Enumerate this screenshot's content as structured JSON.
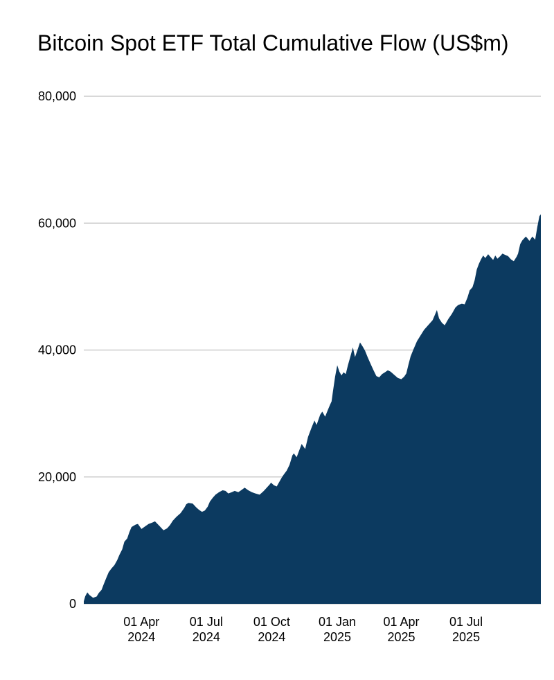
{
  "chart_data": {
    "type": "area",
    "title": "Bitcoin Spot ETF Total Cumulative Flow (US$m)",
    "xlabel": "",
    "ylabel": "",
    "unit": "US$m",
    "ylim": [
      0,
      80000
    ],
    "grid": "horizontal-only",
    "legend": "none",
    "colors": {
      "area_fill": "#0C3A60",
      "gridline": "#CCCCCC",
      "background": "#FFFFFF",
      "text": "#000000"
    },
    "y_ticks": [
      {
        "value": 0,
        "label": "0"
      },
      {
        "value": 20000,
        "label": "20,000"
      },
      {
        "value": 40000,
        "label": "40,000"
      },
      {
        "value": 60000,
        "label": "60,000"
      },
      {
        "value": 80000,
        "label": "80,000"
      }
    ],
    "x_ticks": [
      {
        "date": "2024-04-01",
        "label_line1": "01 Apr",
        "label_line2": "2024"
      },
      {
        "date": "2024-07-01",
        "label_line1": "01 Jul",
        "label_line2": "2024"
      },
      {
        "date": "2024-10-01",
        "label_line1": "01 Oct",
        "label_line2": "2024"
      },
      {
        "date": "2025-01-01",
        "label_line1": "01 Jan",
        "label_line2": "2025"
      },
      {
        "date": "2025-04-01",
        "label_line1": "01 Apr",
        "label_line2": "2025"
      },
      {
        "date": "2025-07-01",
        "label_line1": "01 Jul",
        "label_line2": "2025"
      }
    ],
    "x_domain": [
      "2024-01-11",
      "2025-10-14"
    ],
    "points": [
      [
        "2024-01-11",
        400
      ],
      [
        "2024-01-13",
        1200
      ],
      [
        "2024-01-16",
        1800
      ],
      [
        "2024-01-19",
        1400
      ],
      [
        "2024-01-24",
        950
      ],
      [
        "2024-01-29",
        1150
      ],
      [
        "2024-02-01",
        1700
      ],
      [
        "2024-02-05",
        2200
      ],
      [
        "2024-02-08",
        3100
      ],
      [
        "2024-02-12",
        4200
      ],
      [
        "2024-02-15",
        5000
      ],
      [
        "2024-02-19",
        5600
      ],
      [
        "2024-02-23",
        6100
      ],
      [
        "2024-02-27",
        6900
      ],
      [
        "2024-03-01",
        7700
      ],
      [
        "2024-03-05",
        8600
      ],
      [
        "2024-03-08",
        9800
      ],
      [
        "2024-03-12",
        10300
      ],
      [
        "2024-03-15",
        11300
      ],
      [
        "2024-03-18",
        12100
      ],
      [
        "2024-03-21",
        12300
      ],
      [
        "2024-03-24",
        12500
      ],
      [
        "2024-03-27",
        12600
      ],
      [
        "2024-04-01",
        11800
      ],
      [
        "2024-04-06",
        12200
      ],
      [
        "2024-04-11",
        12600
      ],
      [
        "2024-04-16",
        12800
      ],
      [
        "2024-04-20",
        13000
      ],
      [
        "2024-04-26",
        12300
      ],
      [
        "2024-05-02",
        11600
      ],
      [
        "2024-05-07",
        11900
      ],
      [
        "2024-05-11",
        12400
      ],
      [
        "2024-05-15",
        13100
      ],
      [
        "2024-05-20",
        13700
      ],
      [
        "2024-05-26",
        14300
      ],
      [
        "2024-05-31",
        15100
      ],
      [
        "2024-06-03",
        15700
      ],
      [
        "2024-06-06",
        15900
      ],
      [
        "2024-06-12",
        15800
      ],
      [
        "2024-06-17",
        15200
      ],
      [
        "2024-06-21",
        14800
      ],
      [
        "2024-06-25",
        14500
      ],
      [
        "2024-06-29",
        14700
      ],
      [
        "2024-07-03",
        15300
      ],
      [
        "2024-07-06",
        16100
      ],
      [
        "2024-07-10",
        16700
      ],
      [
        "2024-07-14",
        17200
      ],
      [
        "2024-07-19",
        17600
      ],
      [
        "2024-07-24",
        17900
      ],
      [
        "2024-07-28",
        17800
      ],
      [
        "2024-08-01",
        17400
      ],
      [
        "2024-08-06",
        17600
      ],
      [
        "2024-08-10",
        17800
      ],
      [
        "2024-08-15",
        17600
      ],
      [
        "2024-08-19",
        17900
      ],
      [
        "2024-08-24",
        18300
      ],
      [
        "2024-08-29",
        17900
      ],
      [
        "2024-09-03",
        17600
      ],
      [
        "2024-09-08",
        17400
      ],
      [
        "2024-09-14",
        17200
      ],
      [
        "2024-09-19",
        17700
      ],
      [
        "2024-09-24",
        18300
      ],
      [
        "2024-09-28",
        18800
      ],
      [
        "2024-09-30",
        19100
      ],
      [
        "2024-10-04",
        18700
      ],
      [
        "2024-10-08",
        18500
      ],
      [
        "2024-10-11",
        19100
      ],
      [
        "2024-10-15",
        19900
      ],
      [
        "2024-10-18",
        20400
      ],
      [
        "2024-10-22",
        21000
      ],
      [
        "2024-10-26",
        21900
      ],
      [
        "2024-10-30",
        23400
      ],
      [
        "2024-11-01",
        23700
      ],
      [
        "2024-11-05",
        23100
      ],
      [
        "2024-11-09",
        24300
      ],
      [
        "2024-11-12",
        25200
      ],
      [
        "2024-11-17",
        24400
      ],
      [
        "2024-11-21",
        26300
      ],
      [
        "2024-11-26",
        27800
      ],
      [
        "2024-11-30",
        28900
      ],
      [
        "2024-12-03",
        28200
      ],
      [
        "2024-12-08",
        29800
      ],
      [
        "2024-12-11",
        30300
      ],
      [
        "2024-12-15",
        29500
      ],
      [
        "2024-12-19",
        30600
      ],
      [
        "2024-12-22",
        31400
      ],
      [
        "2024-12-24",
        31900
      ],
      [
        "2024-12-26",
        33500
      ],
      [
        "2024-12-29",
        35800
      ],
      [
        "2025-01-01",
        37600
      ],
      [
        "2025-01-04",
        36600
      ],
      [
        "2025-01-07",
        36000
      ],
      [
        "2025-01-10",
        36500
      ],
      [
        "2025-01-13",
        36200
      ],
      [
        "2025-01-16",
        37600
      ],
      [
        "2025-01-19",
        38800
      ],
      [
        "2025-01-23",
        40400
      ],
      [
        "2025-01-26",
        38900
      ],
      [
        "2025-01-30",
        40200
      ],
      [
        "2025-02-02",
        41200
      ],
      [
        "2025-02-06",
        40500
      ],
      [
        "2025-02-09",
        39900
      ],
      [
        "2025-02-13",
        38800
      ],
      [
        "2025-02-17",
        37800
      ],
      [
        "2025-02-21",
        36800
      ],
      [
        "2025-02-25",
        35900
      ],
      [
        "2025-03-01",
        35700
      ],
      [
        "2025-03-05",
        36200
      ],
      [
        "2025-03-09",
        36500
      ],
      [
        "2025-03-13",
        36800
      ],
      [
        "2025-03-17",
        36600
      ],
      [
        "2025-03-22",
        36100
      ],
      [
        "2025-03-27",
        35600
      ],
      [
        "2025-04-01",
        35400
      ],
      [
        "2025-04-05",
        35800
      ],
      [
        "2025-04-08",
        36300
      ],
      [
        "2025-04-11",
        37700
      ],
      [
        "2025-04-14",
        39000
      ],
      [
        "2025-04-18",
        40100
      ],
      [
        "2025-04-23",
        41400
      ],
      [
        "2025-04-28",
        42300
      ],
      [
        "2025-05-03",
        43200
      ],
      [
        "2025-05-07",
        43700
      ],
      [
        "2025-05-11",
        44200
      ],
      [
        "2025-05-15",
        44700
      ],
      [
        "2025-05-18",
        45500
      ],
      [
        "2025-05-21",
        46300
      ],
      [
        "2025-05-24",
        45000
      ],
      [
        "2025-05-28",
        44300
      ],
      [
        "2025-06-01",
        43900
      ],
      [
        "2025-06-06",
        44900
      ],
      [
        "2025-06-11",
        45700
      ],
      [
        "2025-06-16",
        46700
      ],
      [
        "2025-06-20",
        47100
      ],
      [
        "2025-06-25",
        47300
      ],
      [
        "2025-06-29",
        47200
      ],
      [
        "2025-07-03",
        48300
      ],
      [
        "2025-07-06",
        49400
      ],
      [
        "2025-07-10",
        49900
      ],
      [
        "2025-07-13",
        51000
      ],
      [
        "2025-07-16",
        52700
      ],
      [
        "2025-07-19",
        53600
      ],
      [
        "2025-07-22",
        54300
      ],
      [
        "2025-07-25",
        54900
      ],
      [
        "2025-07-28",
        54500
      ],
      [
        "2025-08-01",
        55100
      ],
      [
        "2025-08-04",
        54700
      ],
      [
        "2025-08-08",
        54200
      ],
      [
        "2025-08-11",
        54900
      ],
      [
        "2025-08-14",
        54400
      ],
      [
        "2025-08-18",
        54800
      ],
      [
        "2025-08-21",
        55200
      ],
      [
        "2025-08-25",
        55000
      ],
      [
        "2025-08-29",
        54800
      ],
      [
        "2025-09-02",
        54300
      ],
      [
        "2025-09-06",
        54000
      ],
      [
        "2025-09-10",
        54700
      ],
      [
        "2025-09-12",
        55200
      ],
      [
        "2025-09-15",
        56700
      ],
      [
        "2025-09-18",
        57300
      ],
      [
        "2025-09-23",
        57900
      ],
      [
        "2025-09-28",
        57200
      ],
      [
        "2025-10-02",
        57900
      ],
      [
        "2025-10-06",
        57400
      ],
      [
        "2025-10-09",
        59400
      ],
      [
        "2025-10-12",
        61100
      ],
      [
        "2025-10-14",
        61400
      ]
    ]
  }
}
